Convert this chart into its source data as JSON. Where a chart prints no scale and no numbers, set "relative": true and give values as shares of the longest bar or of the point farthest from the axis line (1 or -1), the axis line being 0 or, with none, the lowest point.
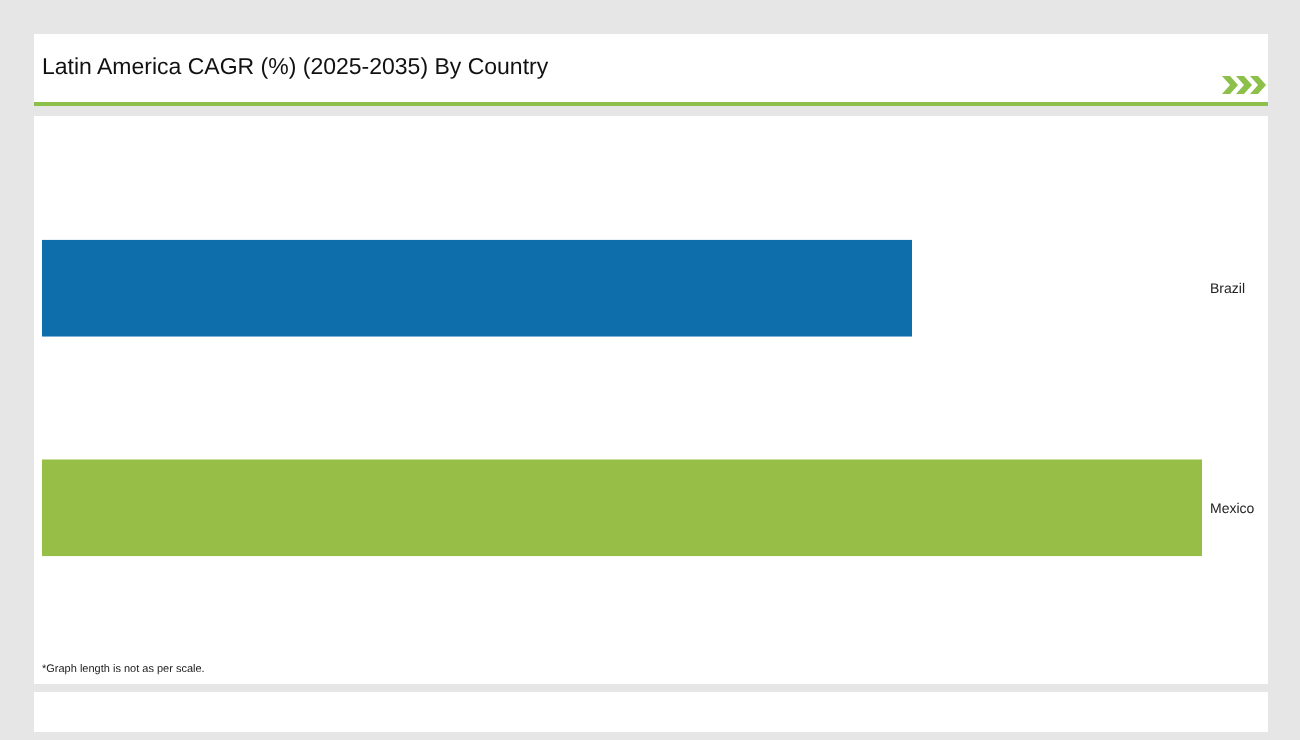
{
  "chart_data": {
    "type": "bar",
    "orientation": "horizontal",
    "relative": true,
    "title": "Latin America CAGR (%) (2025-2035) By Country",
    "categories": [
      "Brazil",
      "Mexico"
    ],
    "values": [
      0.75,
      1
    ],
    "colors": [
      "#0e6dab",
      "#97bf47"
    ],
    "annotations": [
      "*Graph length is not as per scale."
    ]
  }
}
